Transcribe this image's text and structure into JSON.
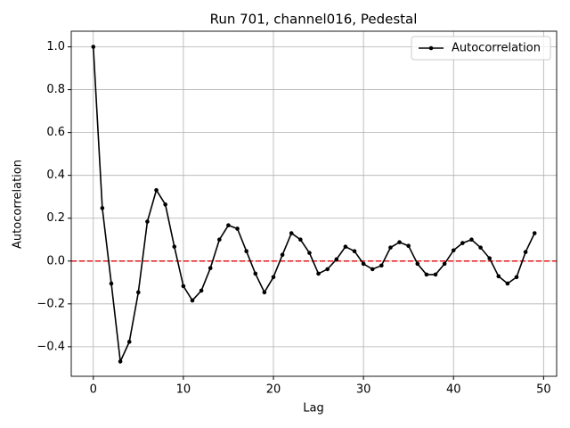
{
  "chart_data": {
    "type": "line",
    "title": "Run 701, channel016, Pedestal",
    "xlabel": "Lag",
    "ylabel": "Autocorrelation",
    "x": [
      0,
      1,
      2,
      3,
      4,
      5,
      6,
      7,
      8,
      9,
      10,
      11,
      12,
      13,
      14,
      15,
      16,
      17,
      18,
      19,
      20,
      21,
      22,
      23,
      24,
      25,
      26,
      27,
      28,
      29,
      30,
      31,
      32,
      33,
      34,
      35,
      36,
      37,
      38,
      39,
      40,
      41,
      42,
      43,
      44,
      45,
      46,
      47,
      48,
      49
    ],
    "series": [
      {
        "name": "Autocorrelation",
        "color": "#000000",
        "values": [
          1.0,
          0.247,
          -0.105,
          -0.469,
          -0.377,
          -0.146,
          0.184,
          0.331,
          0.264,
          0.067,
          -0.117,
          -0.184,
          -0.138,
          -0.033,
          0.1,
          0.167,
          0.151,
          0.046,
          -0.059,
          -0.146,
          -0.075,
          0.029,
          0.13,
          0.1,
          0.038,
          -0.059,
          -0.038,
          0.008,
          0.067,
          0.046,
          -0.013,
          -0.038,
          -0.021,
          0.063,
          0.088,
          0.071,
          -0.013,
          -0.063,
          -0.063,
          -0.013,
          0.05,
          0.084,
          0.1,
          0.063,
          0.013,
          -0.071,
          -0.105,
          -0.075,
          0.042,
          0.13
        ]
      }
    ],
    "reference_line": {
      "value": 0,
      "color": "#e41a1c"
    },
    "xlim": [
      -2.45,
      51.45
    ],
    "xticks": [
      0,
      10,
      20,
      30,
      40,
      50
    ],
    "ylim": [
      -0.538,
      1.073
    ],
    "yticks": [
      {
        "value": -0.4,
        "label": "−0.4"
      },
      {
        "value": -0.2,
        "label": "−0.2"
      },
      {
        "value": 0,
        "label": "0.0"
      },
      0.2,
      0.4,
      0.6,
      0.8,
      {
        "value": 1,
        "label": "1.0"
      }
    ],
    "grid": true,
    "legend": "upper right"
  }
}
